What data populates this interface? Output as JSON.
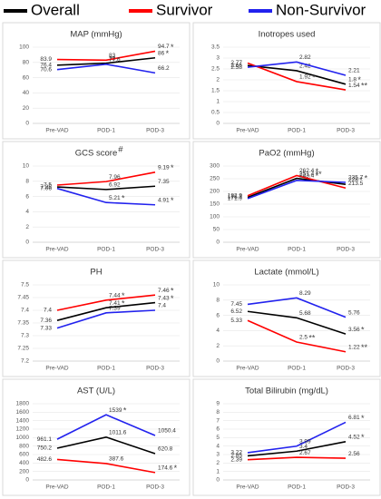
{
  "legend": [
    {
      "name": "Overall",
      "color": "#000000"
    },
    {
      "name": "Survivor",
      "color": "#ff0000"
    },
    {
      "name": "Non-Survivor",
      "color": "#2222ee"
    }
  ],
  "chart_data": [
    {
      "type": "line",
      "title": "MAP (mmHg)",
      "categories": [
        "Pre-VAD",
        "POD-1",
        "POD-3"
      ],
      "ylim": [
        0,
        100
      ],
      "yticks": [
        0,
        20,
        40,
        60,
        80,
        100
      ],
      "series": [
        {
          "values": [
            76.4,
            79,
            86
          ],
          "sig": [
            null,
            null,
            "*"
          ]
        },
        {
          "values": [
            83.9,
            83,
            94.7
          ],
          "sig": [
            null,
            null,
            "*"
          ]
        },
        {
          "values": [
            70.6,
            77.6,
            66.2
          ],
          "sig": [
            null,
            null,
            null
          ]
        }
      ]
    },
    {
      "type": "line",
      "title": "Inotropes used",
      "categories": [
        "Pre-VAD",
        "POD-1",
        "POD-3"
      ],
      "ylim": [
        0,
        3.5
      ],
      "yticks": [
        0,
        0.5,
        1,
        1.5,
        2,
        2.5,
        3,
        3.5
      ],
      "series": [
        {
          "values": [
            2.66,
            2.42,
            1.8
          ],
          "sig": [
            null,
            null,
            "*"
          ]
        },
        {
          "values": [
            2.77,
            1.92,
            1.54
          ],
          "sig": [
            null,
            "*",
            "**"
          ]
        },
        {
          "values": [
            2.58,
            2.82,
            2.21
          ],
          "sig": [
            null,
            null,
            null
          ]
        }
      ]
    },
    {
      "type": "line",
      "title": "GCS score",
      "title_mark": "#",
      "categories": [
        "Pre-VAD",
        "POD-1",
        "POD-3"
      ],
      "ylim": [
        0,
        10
      ],
      "yticks": [
        0,
        2,
        4,
        6,
        8,
        10
      ],
      "series": [
        {
          "values": [
            7.25,
            6.92,
            7.35
          ],
          "sig": [
            null,
            null,
            null
          ]
        },
        {
          "values": [
            7.5,
            7.96,
            9.19
          ],
          "sig": [
            null,
            null,
            "*"
          ]
        },
        {
          "values": [
            7.06,
            5.21,
            4.91
          ],
          "sig": [
            null,
            "*",
            "*"
          ]
        }
      ]
    },
    {
      "type": "line",
      "title": "PaO2 (mmHg)",
      "categories": [
        "Pre-VAD",
        "POD-1",
        "POD-3"
      ],
      "ylim": [
        0,
        300
      ],
      "yticks": [
        0,
        50,
        100,
        150,
        200,
        250,
        300
      ],
      "series": [
        {
          "values": [
            176.7,
            251.4,
            228
          ],
          "sig": [
            null,
            "**",
            "*"
          ]
        },
        {
          "values": [
            182.9,
            262.4,
            213.5
          ],
          "sig": [
            null,
            "*",
            null
          ]
        },
        {
          "values": [
            171.9,
            243.4,
            235.7
          ],
          "sig": [
            null,
            "*",
            "*"
          ]
        }
      ]
    },
    {
      "type": "line",
      "title": "PH",
      "categories": [
        "Pre-VAD",
        "POD-1",
        "POD-3"
      ],
      "ylim": [
        7.2,
        7.5
      ],
      "yticks": [
        7.2,
        7.25,
        7.3,
        7.35,
        7.4,
        7.45,
        7.5
      ],
      "series": [
        {
          "values": [
            7.36,
            7.41,
            7.43
          ],
          "sig": [
            null,
            "*",
            "*"
          ]
        },
        {
          "values": [
            7.4,
            7.44,
            7.46
          ],
          "sig": [
            null,
            "*",
            "*"
          ]
        },
        {
          "values": [
            7.33,
            7.39,
            7.4
          ],
          "sig": [
            null,
            null,
            null
          ]
        }
      ]
    },
    {
      "type": "line",
      "title": "Lactate (mmol/L)",
      "categories": [
        "Pre-VAD",
        "POD-1",
        "POD-3"
      ],
      "ylim": [
        0,
        10
      ],
      "yticks": [
        0,
        2,
        4,
        6,
        8,
        10
      ],
      "series": [
        {
          "values": [
            6.52,
            5.68,
            3.56
          ],
          "sig": [
            null,
            null,
            "*"
          ]
        },
        {
          "values": [
            5.33,
            2.5,
            1.22
          ],
          "sig": [
            null,
            "**",
            "**"
          ]
        },
        {
          "values": [
            7.45,
            8.29,
            5.76
          ],
          "sig": [
            null,
            null,
            null
          ]
        }
      ]
    },
    {
      "type": "line",
      "title": "AST (U/L)",
      "categories": [
        "Pre-VAD",
        "POD-1",
        "POD-3"
      ],
      "ylim": [
        0,
        1800
      ],
      "yticks": [
        0,
        200,
        400,
        600,
        800,
        1000,
        1200,
        1400,
        1600,
        1800
      ],
      "series": [
        {
          "values": [
            750.2,
            1011.6,
            620.8
          ],
          "sig": [
            null,
            null,
            null
          ]
        },
        {
          "values": [
            482.6,
            387.6,
            174.6
          ],
          "sig": [
            null,
            null,
            "*"
          ]
        },
        {
          "values": [
            961.1,
            1539,
            1050.4
          ],
          "sig": [
            null,
            "*",
            null
          ]
        }
      ]
    },
    {
      "type": "line",
      "title": "Total Bilirubin (mg/dL)",
      "categories": [
        "Pre-VAD",
        "POD-1",
        "POD-3"
      ],
      "ylim": [
        0,
        9
      ],
      "yticks": [
        0,
        1,
        2,
        3,
        4,
        5,
        6,
        7,
        8,
        9
      ],
      "series": [
        {
          "values": [
            2.85,
            3.4,
            4.52
          ],
          "sig": [
            null,
            null,
            "*"
          ]
        },
        {
          "values": [
            2.39,
            2.67,
            2.56
          ],
          "sig": [
            null,
            null,
            null
          ]
        },
        {
          "values": [
            3.22,
            3.99,
            6.81
          ],
          "sig": [
            null,
            null,
            "*"
          ]
        }
      ]
    }
  ]
}
